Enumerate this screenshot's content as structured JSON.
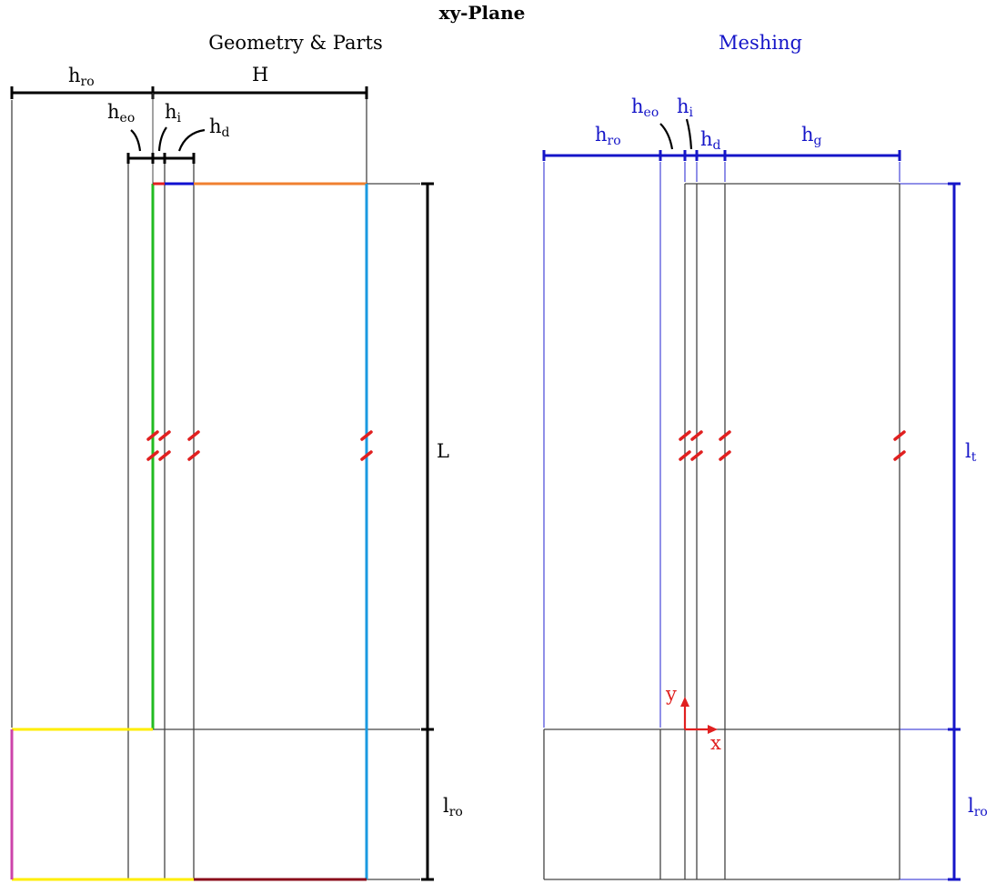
{
  "title": "xy-Plane",
  "left_panel": {
    "heading": "Geometry & Parts",
    "dims": {
      "h_ro": {
        "base": "h",
        "sub": "ro"
      },
      "H": {
        "base": "H",
        "sub": ""
      },
      "h_eo": {
        "base": "h",
        "sub": "eo"
      },
      "h_i": {
        "base": "h",
        "sub": "i"
      },
      "h_d": {
        "base": "h",
        "sub": "d"
      },
      "L": {
        "base": "L",
        "sub": ""
      },
      "l_ro": {
        "base": "l",
        "sub": "ro"
      }
    }
  },
  "right_panel": {
    "heading": "Meshing",
    "dims": {
      "h_ro": {
        "base": "h",
        "sub": "ro"
      },
      "h_eo": {
        "base": "h",
        "sub": "eo"
      },
      "h_i": {
        "base": "h",
        "sub": "i"
      },
      "h_d": {
        "base": "h",
        "sub": "d"
      },
      "h_g": {
        "base": "h",
        "sub": "g"
      },
      "l_t": {
        "base": "l",
        "sub": "t"
      },
      "l_ro": {
        "base": "l",
        "sub": "ro"
      }
    },
    "axes": {
      "x": "x",
      "y": "y"
    }
  },
  "colors": {
    "black": "#000000",
    "gray": "#444444",
    "blue": "#1010d0",
    "red": "#e02020",
    "green": "#22bb22",
    "orange": "#f08030",
    "cyan": "#1a9ae0",
    "yellow": "#ffee00",
    "magenta": "#cc44aa",
    "maroon": "#8a0a1a",
    "dark_blue": "#1515c8"
  }
}
